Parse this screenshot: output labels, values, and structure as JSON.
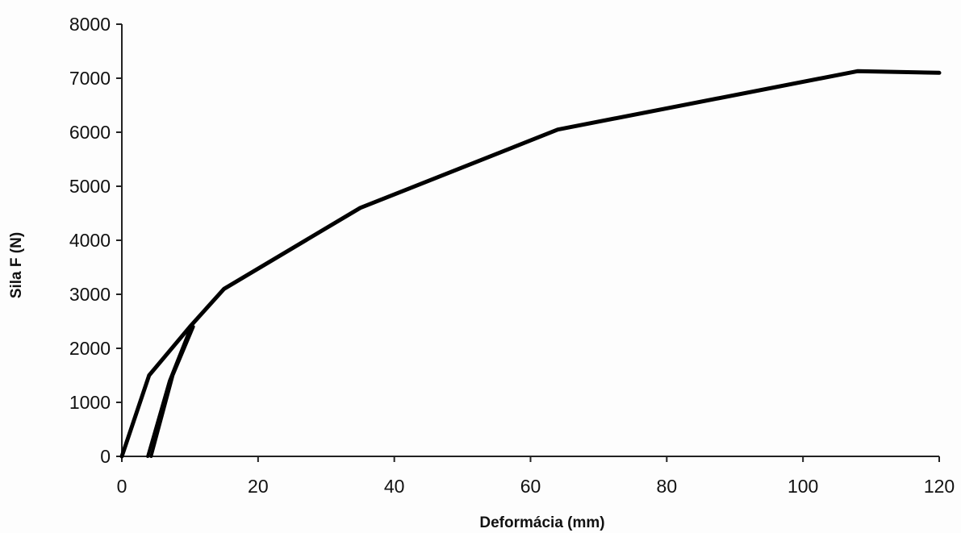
{
  "chart_data": {
    "type": "line",
    "title": "",
    "xlabel": "Deformácia (mm)",
    "ylabel": "Sila F (N)",
    "xlim": [
      0,
      120
    ],
    "ylim": [
      0,
      8000
    ],
    "x_ticks": [
      0,
      20,
      40,
      60,
      80,
      100,
      120
    ],
    "y_ticks": [
      0,
      1000,
      2000,
      3000,
      4000,
      5000,
      6000,
      7000,
      8000
    ],
    "grid": false,
    "line_color": "#000000",
    "series": [
      {
        "x": [
          0,
          4,
          10,
          15,
          35,
          64,
          108,
          120
        ],
        "y": [
          0,
          1500,
          2400,
          3100,
          4600,
          6050,
          7130,
          7100
        ]
      },
      {
        "x": [
          3.8,
          7,
          10
        ],
        "y": [
          0,
          1400,
          2350
        ]
      },
      {
        "x": [
          4.3,
          7.5,
          10.5
        ],
        "y": [
          0,
          1500,
          2400
        ]
      }
    ]
  }
}
